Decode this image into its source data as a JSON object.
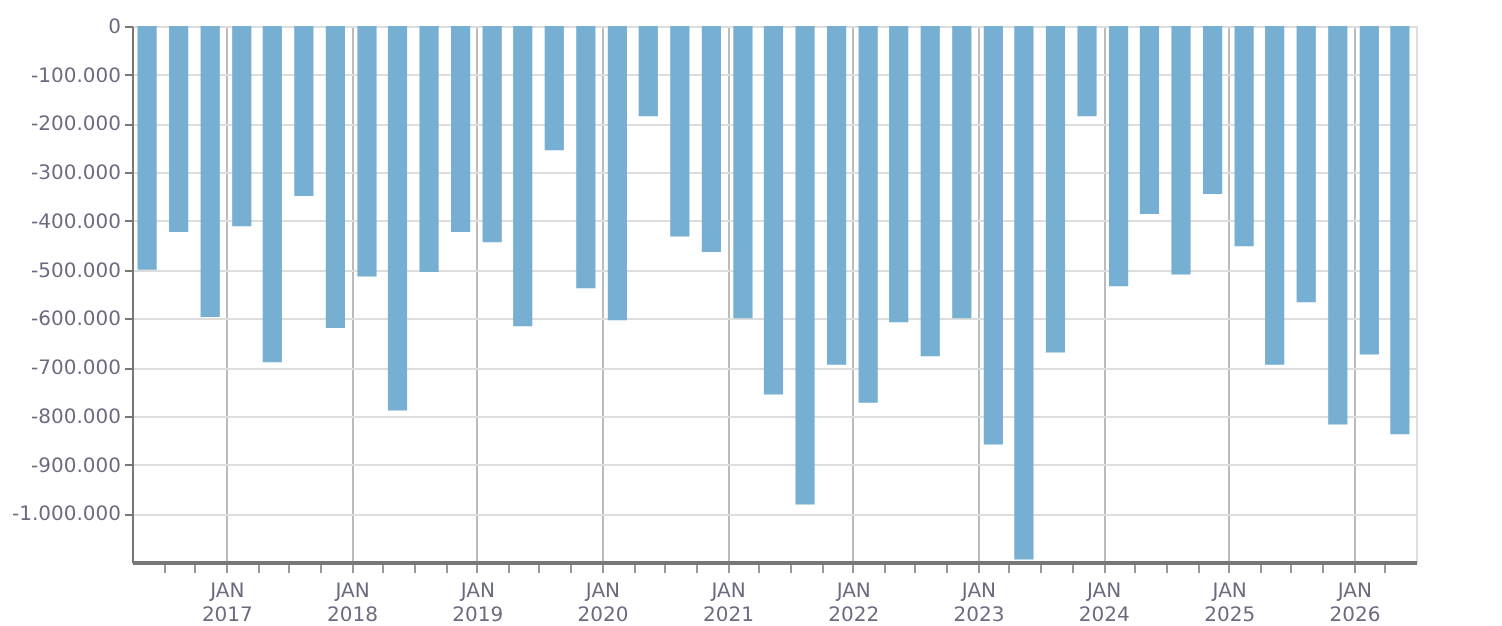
{
  "chart_data": {
    "type": "bar",
    "color": "#76afd2",
    "x": [
      "2016-05-15",
      "2016-08-15",
      "2016-11-15",
      "2017-02-15",
      "2017-05-15",
      "2017-08-15",
      "2017-11-15",
      "2018-02-15",
      "2018-05-15",
      "2018-08-15",
      "2018-11-15",
      "2019-02-15",
      "2019-05-15",
      "2019-08-15",
      "2019-11-15",
      "2020-02-15",
      "2020-05-15",
      "2020-08-15",
      "2020-11-15",
      "2021-02-15",
      "2021-05-15",
      "2021-08-15",
      "2021-11-15",
      "2022-02-15",
      "2022-05-15",
      "2022-08-15",
      "2022-11-15",
      "2023-02-15",
      "2023-05-15",
      "2023-08-15",
      "2023-11-15",
      "2024-02-15",
      "2024-05-15",
      "2024-08-15",
      "2024-11-15",
      "2025-02-15",
      "2025-05-15",
      "2025-08-15",
      "2025-11-15",
      "2026-02-15",
      "2026-05-15"
    ],
    "values": [
      -500000,
      -423000,
      -597000,
      -411000,
      -690000,
      -349000,
      -620000,
      -514000,
      -789000,
      -505000,
      -423000,
      -444000,
      -616000,
      -255000,
      -538000,
      -604000,
      -185000,
      -432000,
      -464000,
      -600000,
      -756000,
      -982000,
      -695000,
      -773000,
      -608000,
      -678000,
      -600000,
      -859000,
      -1095000,
      -670000,
      -185000,
      -534000,
      -386000,
      -510000,
      -345000,
      -452000,
      -695000,
      -567000,
      -818000,
      -674000,
      -838000
    ],
    "xlim": [
      "2016-04",
      "2026-07"
    ],
    "xticks": [
      {
        "value": "2016-07",
        "label": null
      },
      {
        "value": "2016-10",
        "label": null
      },
      {
        "value": "2017-01",
        "label": "JAN 2017"
      },
      {
        "value": "2017-04",
        "label": null
      },
      {
        "value": "2017-07",
        "label": null
      },
      {
        "value": "2017-10",
        "label": null
      },
      {
        "value": "2018-01",
        "label": "JAN 2018"
      },
      {
        "value": "2018-04",
        "label": null
      },
      {
        "value": "2018-07",
        "label": null
      },
      {
        "value": "2018-10",
        "label": null
      },
      {
        "value": "2019-01",
        "label": "JAN 2019"
      },
      {
        "value": "2019-04",
        "label": null
      },
      {
        "value": "2019-07",
        "label": null
      },
      {
        "value": "2019-10",
        "label": null
      },
      {
        "value": "2020-01",
        "label": "JAN 2020"
      },
      {
        "value": "2020-04",
        "label": null
      },
      {
        "value": "2020-07",
        "label": null
      },
      {
        "value": "2020-10",
        "label": null
      },
      {
        "value": "2021-01",
        "label": "JAN 2021"
      },
      {
        "value": "2021-04",
        "label": null
      },
      {
        "value": "2021-07",
        "label": null
      },
      {
        "value": "2021-10",
        "label": null
      },
      {
        "value": "2022-01",
        "label": "JAN 2022"
      },
      {
        "value": "2022-04",
        "label": null
      },
      {
        "value": "2022-07",
        "label": null
      },
      {
        "value": "2022-10",
        "label": null
      },
      {
        "value": "2023-01",
        "label": "JAN 2023"
      },
      {
        "value": "2023-04",
        "label": null
      },
      {
        "value": "2023-07",
        "label": null
      },
      {
        "value": "2023-10",
        "label": null
      },
      {
        "value": "2024-01",
        "label": "JAN 2024"
      },
      {
        "value": "2024-04",
        "label": null
      },
      {
        "value": "2024-07",
        "label": null
      },
      {
        "value": "2024-10",
        "label": null
      },
      {
        "value": "2025-01",
        "label": "JAN 2025"
      },
      {
        "value": "2025-04",
        "label": null
      },
      {
        "value": "2025-07",
        "label": null
      },
      {
        "value": "2025-10",
        "label": null
      },
      {
        "value": "2026-01",
        "label": "JAN 2026"
      },
      {
        "value": "2026-04",
        "label": null
      }
    ],
    "ylim": [
      -1100000,
      0
    ],
    "yticks": [
      {
        "value": 0,
        "label": "0"
      },
      {
        "value": -100000,
        "label": "-100.000"
      },
      {
        "value": -200000,
        "label": "-200.000"
      },
      {
        "value": -300000,
        "label": "-300.000"
      },
      {
        "value": -400000,
        "label": "-400.000"
      },
      {
        "value": -500000,
        "label": "-500.000"
      },
      {
        "value": -600000,
        "label": "-600.000"
      },
      {
        "value": -700000,
        "label": "-700.000"
      },
      {
        "value": -800000,
        "label": "-800.000"
      },
      {
        "value": -900000,
        "label": "-900.000"
      },
      {
        "value": -1000000,
        "label": "-1.000.000"
      }
    ],
    "grid": true
  }
}
